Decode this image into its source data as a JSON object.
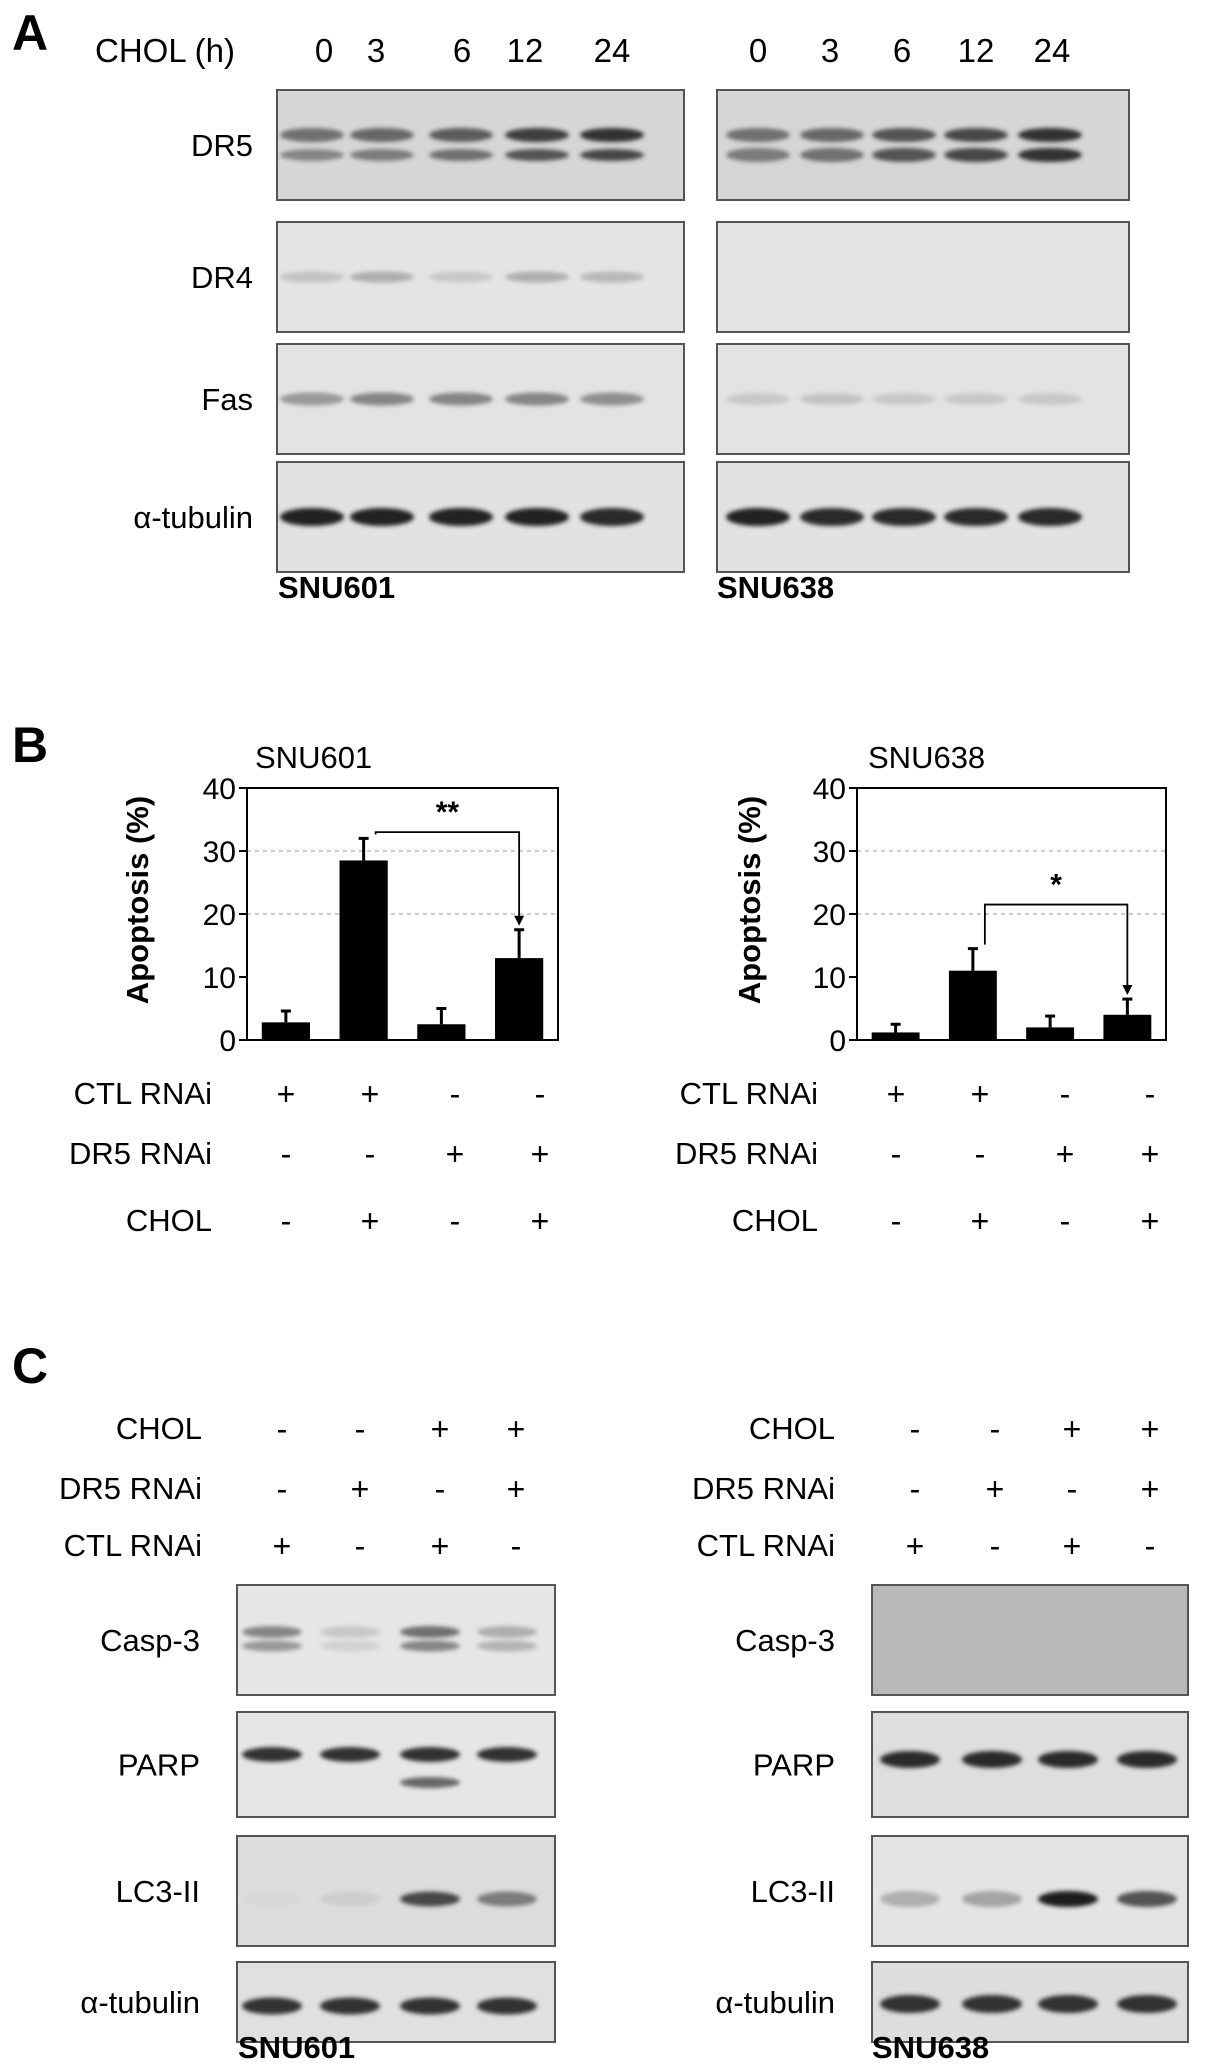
{
  "panels": {
    "a": {
      "letter": "A",
      "time_label": "CHOL (h)",
      "time_points": [
        "0",
        "3",
        "6",
        "12",
        "24"
      ],
      "rows": [
        {
          "label": "DR5",
          "shade": "#d6d6d6",
          "left": [
            {
              "intensity": [
                0.55,
                0.6,
                0.65,
                0.8,
                0.85
              ],
              "thick": 10
            },
            {
              "intensity": [
                0.45,
                0.5,
                0.55,
                0.7,
                0.75
              ],
              "thick": 8
            }
          ],
          "right": [
            {
              "intensity": [
                0.55,
                0.6,
                0.7,
                0.75,
                0.85
              ],
              "thick": 10
            },
            {
              "intensity": [
                0.5,
                0.55,
                0.7,
                0.75,
                0.85
              ],
              "thick": 10
            }
          ]
        },
        {
          "label": "DR4",
          "shade": "#e4e4e4",
          "left": [
            {
              "intensity": [
                0.15,
                0.25,
                0.12,
                0.25,
                0.2
              ],
              "thick": 7
            }
          ],
          "right": []
        },
        {
          "label": "Fas",
          "shade": "#e3e3e3",
          "left": [
            {
              "intensity": [
                0.35,
                0.45,
                0.45,
                0.45,
                0.4
              ],
              "thick": 9
            }
          ],
          "right": [
            {
              "intensity": [
                0.12,
                0.15,
                0.12,
                0.12,
                0.12
              ],
              "thick": 8
            }
          ]
        },
        {
          "label": "α-tubulin",
          "shade": "#e2e2e2",
          "left": [
            {
              "intensity": [
                0.92,
                0.92,
                0.92,
                0.92,
                0.9
              ],
              "thick": 14
            }
          ],
          "right": [
            {
              "intensity": [
                0.92,
                0.9,
                0.9,
                0.9,
                0.9
              ],
              "thick": 14
            }
          ]
        }
      ],
      "cell_lines": [
        "SNU601",
        "SNU638"
      ]
    },
    "b": {
      "letter": "B",
      "ylabel": "Apoptosis (%)",
      "condition_labels": [
        "CTL RNAi",
        "DR5 RNAi",
        "CHOL"
      ],
      "conditions": [
        [
          "+",
          "+",
          "-",
          "-"
        ],
        [
          "-",
          "-",
          "+",
          "+"
        ],
        [
          "-",
          "+",
          "-",
          "+"
        ]
      ]
    },
    "c": {
      "letter": "C",
      "condition_labels": [
        "CHOL",
        "DR5 RNAi",
        "CTL RNAi"
      ],
      "conditions": [
        [
          "-",
          "-",
          "+",
          "+"
        ],
        [
          "-",
          "+",
          "-",
          "+"
        ],
        [
          "+",
          "-",
          "+",
          "-"
        ]
      ],
      "rows": [
        {
          "label": "Casp-3",
          "left_shade": "#e6e6e6",
          "right_shade": "#b9b9b9",
          "left": [
            {
              "intensity": [
                0.45,
                0.12,
                0.55,
                0.25
              ],
              "thick": 8,
              "offset": -8
            },
            {
              "intensity": [
                0.35,
                0.08,
                0.45,
                0.22
              ],
              "thick": 7,
              "offset": 6
            }
          ],
          "right": []
        },
        {
          "label": "PARP",
          "left_shade": "#e6e6e6",
          "right_shade": "#dedede",
          "left": [
            {
              "intensity": [
                0.85,
                0.85,
                0.85,
                0.85
              ],
              "thick": 11,
              "offset": -10
            },
            {
              "intensity": [
                0,
                0,
                0.6,
                0
              ],
              "thick": 7,
              "offset": 18
            }
          ],
          "right": [
            {
              "intensity": [
                0.9,
                0.9,
                0.9,
                0.9
              ],
              "thick": 13,
              "offset": -5
            }
          ]
        },
        {
          "label": "LC3-II",
          "left_shade": "#dcdcdc",
          "right_shade": "#e4e4e4",
          "left": [
            {
              "intensity": [
                0.05,
                0.1,
                0.75,
                0.5
              ],
              "thick": 11,
              "offset": 8
            }
          ],
          "right": [
            {
              "intensity": [
                0.25,
                0.3,
                0.95,
                0.7
              ],
              "thick": 12,
              "offset": 8
            }
          ]
        },
        {
          "label": "α-tubulin",
          "left_shade": "#e0e0e0",
          "right_shade": "#dddddd",
          "left": [
            {
              "intensity": [
                0.85,
                0.85,
                0.85,
                0.85
              ],
              "thick": 13,
              "offset": 4
            }
          ],
          "right": [
            {
              "intensity": [
                0.85,
                0.85,
                0.85,
                0.85
              ],
              "thick": 14,
              "offset": 2
            }
          ]
        }
      ],
      "cell_lines": [
        "SNU601",
        "SNU638"
      ]
    }
  },
  "chart_data": [
    {
      "type": "bar",
      "title": "SNU601",
      "ylabel": "Apoptosis (%)",
      "ylim": [
        0,
        40
      ],
      "yticks": [
        0,
        10,
        20,
        30,
        40
      ],
      "grid": "dashed lines at 20 and 30",
      "values": [
        2.8,
        28.5,
        2.5,
        13
      ],
      "errors": [
        1.8,
        3.5,
        2.5,
        4.5
      ],
      "significance": {
        "from_bar": 2,
        "to_bar": 4,
        "label": "**",
        "y": 33
      }
    },
    {
      "type": "bar",
      "title": "SNU638",
      "ylabel": "Apoptosis (%)",
      "ylim": [
        0,
        40
      ],
      "yticks": [
        0,
        10,
        20,
        30,
        40
      ],
      "grid": "dashed lines at 20 and 30",
      "values": [
        1.2,
        11,
        2,
        4
      ],
      "errors": [
        1.3,
        3.5,
        1.8,
        2.5
      ],
      "significance": {
        "from_bar": 2,
        "to_bar": 4,
        "label": "*",
        "y": 21.5
      }
    }
  ]
}
